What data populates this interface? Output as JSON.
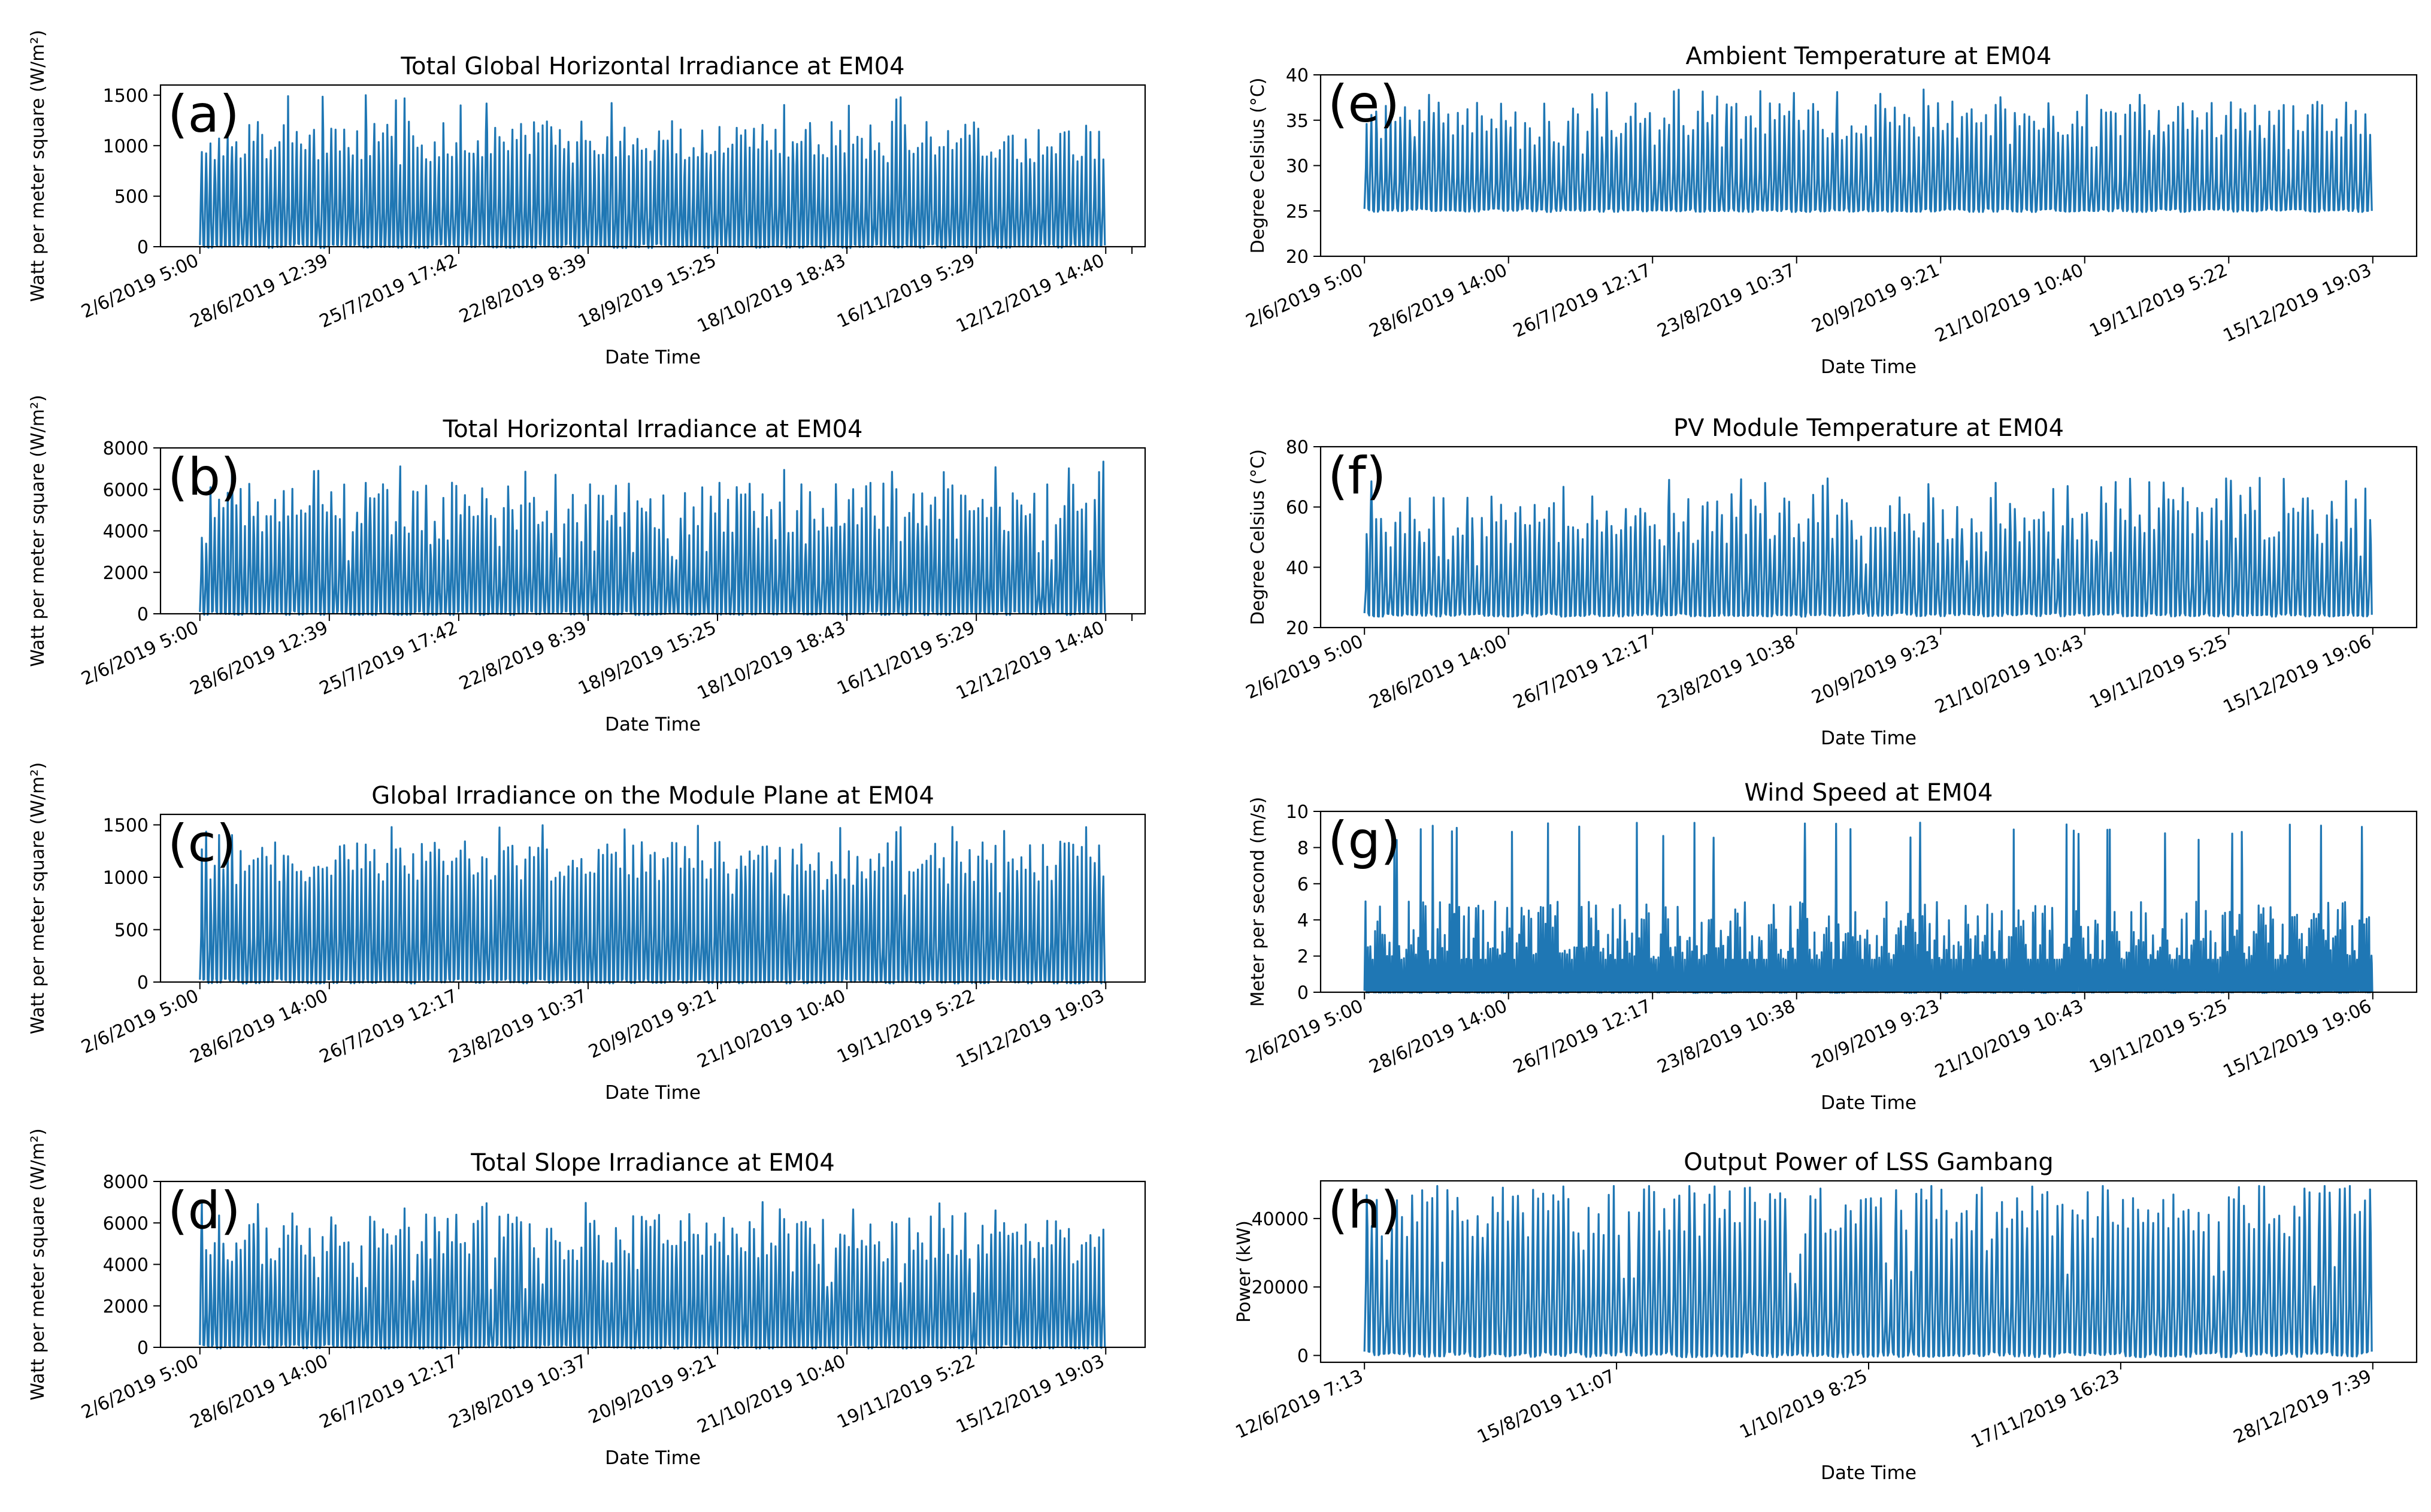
{
  "figure": {
    "line_color": "#1f77b4",
    "panels": [
      {
        "id": "a",
        "panel_label": "(a)",
        "chart_data": {
          "type": "line",
          "title": "Total Global Horizontal Irradiance at EM04",
          "xlabel": "Date Time",
          "ylabel": "Watt per meter square (W/m²)",
          "ylim": [
            0,
            1600
          ],
          "yticks": [
            0,
            500,
            1000,
            1500
          ],
          "xtick_labels": [
            "2/6/2019 5:00",
            "28/6/2019 12:39",
            "25/7/2019 17:42",
            "22/8/2019 8:39",
            "18/9/2019 15:25",
            "18/10/2019 18:43",
            "16/11/2019 5:29",
            "12/12/2019 14:40"
          ],
          "series": [
            {
              "floor": 0,
              "peak_mean": 1050,
              "peak_range": [
                800,
                1500
              ],
              "num_cycles": 210
            }
          ]
        }
      },
      {
        "id": "b",
        "panel_label": "(b)",
        "chart_data": {
          "type": "line",
          "title": "Total Horizontal Irradiance at EM04",
          "xlabel": "Date Time",
          "ylabel": "Watt per meter square (W/m²)",
          "ylim": [
            0,
            8000
          ],
          "yticks": [
            0,
            2000,
            4000,
            6000,
            8000
          ],
          "xtick_labels": [
            "2/6/2019 5:00",
            "28/6/2019 12:39",
            "25/7/2019 17:42",
            "22/8/2019 8:39",
            "18/9/2019 15:25",
            "18/10/2019 18:43",
            "16/11/2019 5:29",
            "12/12/2019 14:40"
          ],
          "series": [
            {
              "floor": 0,
              "peak_mean": 5000,
              "peak_range": [
                2500,
                7400
              ],
              "num_cycles": 210
            }
          ]
        }
      },
      {
        "id": "c",
        "panel_label": "(c)",
        "chart_data": {
          "type": "line",
          "title": "Global Irradiance on the Module Plane at EM04",
          "xlabel": "Date Time",
          "ylabel": "Watt per meter square (W/m²)",
          "ylim": [
            0,
            1600
          ],
          "yticks": [
            0,
            500,
            1000,
            1500
          ],
          "xtick_labels": [
            "2/6/2019 5:00",
            "28/6/2019 14:00",
            "26/7/2019 12:17",
            "23/8/2019 10:37",
            "20/9/2019 9:21",
            "21/10/2019 10:40",
            "19/11/2019 5:22",
            "15/12/2019 19:03"
          ],
          "series": [
            {
              "floor": 0,
              "peak_mean": 1150,
              "peak_range": [
                800,
                1500
              ],
              "num_cycles": 210
            }
          ]
        }
      },
      {
        "id": "d",
        "panel_label": "(d)",
        "chart_data": {
          "type": "line",
          "title": "Total Slope Irradiance at EM04",
          "xlabel": "Date Time",
          "ylabel": "Watt per meter square (W/m²)",
          "ylim": [
            0,
            8000
          ],
          "yticks": [
            0,
            2000,
            4000,
            6000,
            8000
          ],
          "xtick_labels": [
            "2/6/2019 5:00",
            "28/6/2019 14:00",
            "26/7/2019 12:17",
            "23/8/2019 10:37",
            "20/9/2019 9:21",
            "21/10/2019 10:40",
            "19/11/2019 5:22",
            "15/12/2019 19:03"
          ],
          "series": [
            {
              "floor": 0,
              "peak_mean": 5200,
              "peak_range": [
                2500,
                7100
              ],
              "num_cycles": 210
            }
          ]
        }
      },
      {
        "id": "e",
        "panel_label": "(e)",
        "chart_data": {
          "type": "line",
          "title": "Ambient Temperature  at EM04",
          "xlabel": "Date Time",
          "ylabel": "Degree Celsius (°C)",
          "ylim": [
            20,
            40
          ],
          "yticks": [
            20,
            25,
            30,
            35,
            40
          ],
          "xtick_labels": [
            "2/6/2019 5:00",
            "28/6/2019 14:00",
            "26/7/2019 12:17",
            "23/8/2019 10:37",
            "20/9/2019 9:21",
            "21/10/2019 10:40",
            "19/11/2019 5:22",
            "15/12/2019 19:03"
          ],
          "series": [
            {
              "floor": 25,
              "peak_mean": 35,
              "peak_range": [
                31,
                38.5
              ],
              "num_cycles": 210
            }
          ]
        }
      },
      {
        "id": "f",
        "panel_label": "(f)",
        "chart_data": {
          "type": "line",
          "title": "PV Module Temperature at EM04",
          "xlabel": "Date Time",
          "ylabel": "Degree Celsius (°C)",
          "ylim": [
            20,
            80
          ],
          "yticks": [
            20,
            40,
            60,
            80
          ],
          "xtick_labels": [
            "2/6/2019 5:00",
            "28/6/2019 14:00",
            "26/7/2019 12:17",
            "23/8/2019 10:38",
            "20/9/2019 9:23",
            "21/10/2019 10:43",
            "19/11/2019 5:25",
            "15/12/2019 19:06"
          ],
          "series": [
            {
              "floor": 24,
              "peak_mean": 56,
              "peak_range": [
                40,
                70
              ],
              "num_cycles": 210
            }
          ]
        }
      },
      {
        "id": "g",
        "panel_label": "(g)",
        "chart_data": {
          "type": "line",
          "title": "Wind Speed at EM04",
          "xlabel": "Date Time",
          "ylabel": "Meter per second (m/s)",
          "ylim": [
            0,
            10
          ],
          "yticks": [
            0,
            2,
            4,
            6,
            8,
            10
          ],
          "xtick_labels": [
            "2/6/2019 5:00",
            "28/6/2019 14:00",
            "26/7/2019 12:17",
            "23/8/2019 10:38",
            "20/9/2019 9:23",
            "21/10/2019 10:43",
            "19/11/2019 5:25",
            "15/12/2019 19:06"
          ],
          "series": [
            {
              "floor": 0,
              "peak_mean": 3,
              "peak_range": [
                2,
                9.4
              ],
              "num_cycles": 420
            }
          ]
        }
      },
      {
        "id": "h",
        "panel_label": "(h)",
        "chart_data": {
          "type": "line",
          "title": "Output Power of LSS Gambang",
          "xlabel": "Date Time",
          "ylabel": "Power (kW)",
          "ylim": [
            -2000,
            51000
          ],
          "yticks": [
            0,
            20000,
            40000
          ],
          "xtick_labels": [
            "12/6/2019 7:13",
            "15/8/2019 11:07",
            "1/10/2019 8:25",
            "17/11/2019 16:23",
            "28/12/2019 7:39"
          ],
          "series": [
            {
              "floor": 0,
              "peak_mean": 42000,
              "peak_range": [
                20000,
                49500
              ],
              "num_cycles": 200
            }
          ]
        }
      }
    ]
  }
}
